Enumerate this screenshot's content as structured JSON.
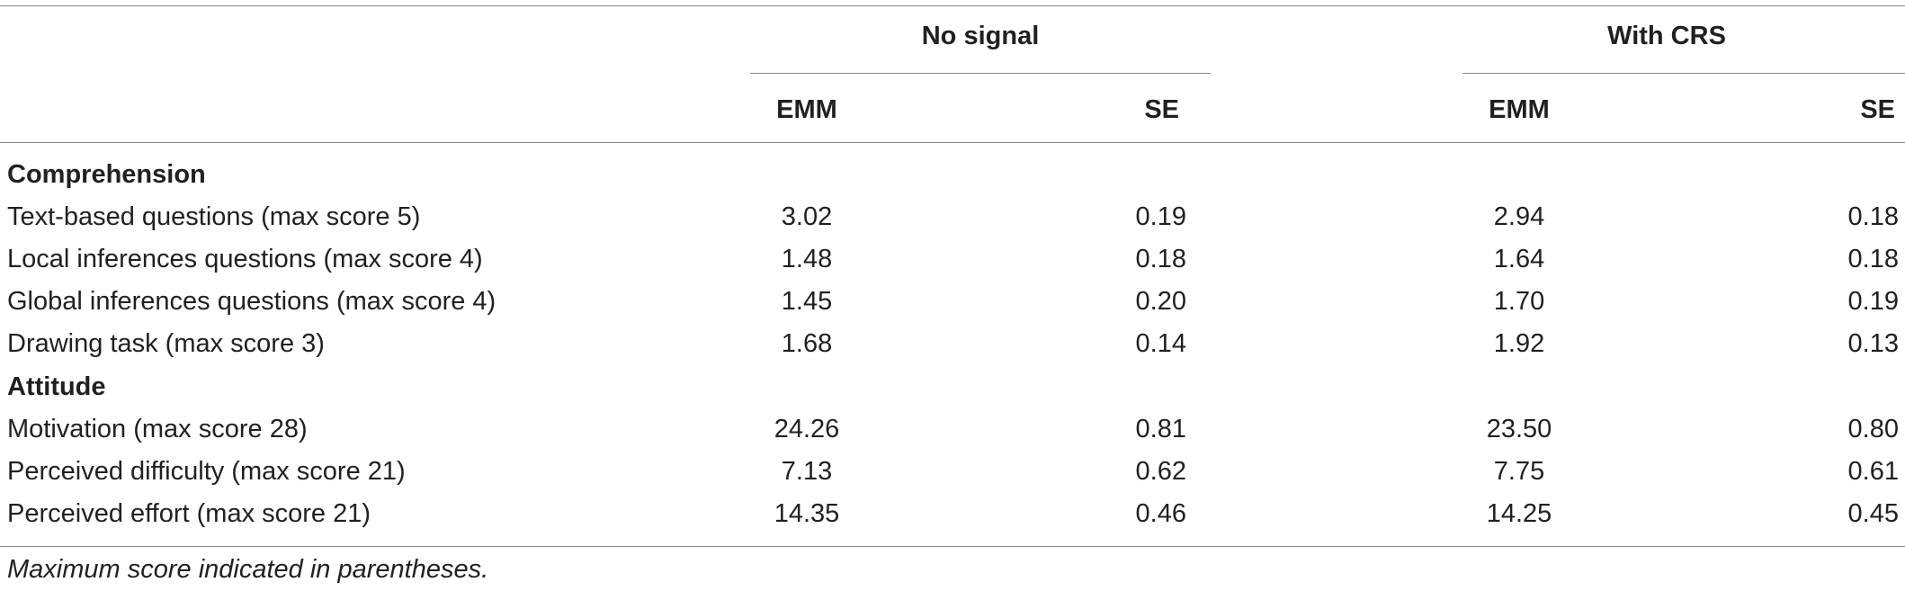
{
  "table": {
    "group_headers": [
      "No signal",
      "With CRS"
    ],
    "sub_headers": [
      "EMM",
      "SE",
      "EMM",
      "SE"
    ],
    "sections": [
      {
        "title": "Comprehension",
        "rows": [
          {
            "label": "Text-based questions (max score 5)",
            "values": [
              "3.02",
              "0.19",
              "2.94",
              "0.18"
            ]
          },
          {
            "label": "Local inferences questions (max score 4)",
            "values": [
              "1.48",
              "0.18",
              "1.64",
              "0.18"
            ]
          },
          {
            "label": "Global inferences questions (max score 4)",
            "values": [
              "1.45",
              "0.20",
              "1.70",
              "0.19"
            ]
          },
          {
            "label": "Drawing task (max score 3)",
            "values": [
              "1.68",
              "0.14",
              "1.92",
              "0.13"
            ]
          }
        ]
      },
      {
        "title": "Attitude",
        "rows": [
          {
            "label": "Motivation (max score 28)",
            "values": [
              "24.26",
              "0.81",
              "23.50",
              "0.80"
            ]
          },
          {
            "label": "Perceived difficulty (max score 21)",
            "values": [
              "7.13",
              "0.62",
              "7.75",
              "0.61"
            ]
          },
          {
            "label": "Perceived effort (max score 21)",
            "values": [
              "14.35",
              "0.46",
              "14.25",
              "0.45"
            ]
          }
        ]
      }
    ],
    "footnote": "Maximum score indicated in parentheses."
  }
}
